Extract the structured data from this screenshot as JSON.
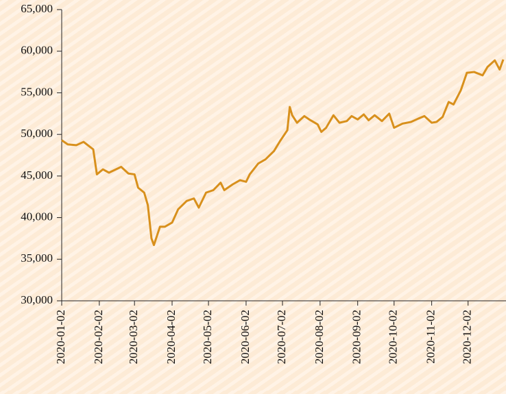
{
  "chart_data": {
    "type": "line",
    "x": [
      "2020-01-02",
      "2020-01-07",
      "2020-01-14",
      "2020-01-20",
      "2020-01-28",
      "2020-01-31",
      "2020-02-05",
      "2020-02-10",
      "2020-02-20",
      "2020-02-26",
      "2020-03-02",
      "2020-03-05",
      "2020-03-10",
      "2020-03-13",
      "2020-03-16",
      "2020-03-18",
      "2020-03-23",
      "2020-03-27",
      "2020-04-02",
      "2020-04-07",
      "2020-04-14",
      "2020-04-20",
      "2020-04-24",
      "2020-04-30",
      "2020-05-06",
      "2020-05-12",
      "2020-05-15",
      "2020-05-22",
      "2020-05-28",
      "2020-06-02",
      "2020-06-05",
      "2020-06-12",
      "2020-06-18",
      "2020-06-25",
      "2020-06-30",
      "2020-07-06",
      "2020-07-08",
      "2020-07-10",
      "2020-07-14",
      "2020-07-20",
      "2020-07-24",
      "2020-07-31",
      "2020-08-03",
      "2020-08-07",
      "2020-08-13",
      "2020-08-18",
      "2020-08-24",
      "2020-08-28",
      "2020-09-02",
      "2020-09-07",
      "2020-09-11",
      "2020-09-16",
      "2020-09-22",
      "2020-09-28",
      "2020-10-02",
      "2020-10-09",
      "2020-10-16",
      "2020-10-22",
      "2020-10-27",
      "2020-11-02",
      "2020-11-06",
      "2020-11-11",
      "2020-11-16",
      "2020-11-20",
      "2020-11-26",
      "2020-12-01",
      "2020-12-07",
      "2020-12-14",
      "2020-12-18",
      "2020-12-24",
      "2020-12-28",
      "2020-12-31"
    ],
    "series": [
      {
        "color": "#d8901c",
        "values": [
          49300,
          48800,
          48700,
          49100,
          48200,
          45200,
          45800,
          45400,
          46100,
          45300,
          45200,
          43600,
          43000,
          41500,
          37500,
          36700,
          38900,
          38900,
          39400,
          41000,
          42000,
          42300,
          41200,
          43000,
          43300,
          44200,
          43300,
          44000,
          44500,
          44300,
          45200,
          46500,
          47000,
          48000,
          49200,
          50500,
          53300,
          52300,
          51400,
          52200,
          51800,
          51200,
          50300,
          50800,
          52300,
          51400,
          51600,
          52200,
          51800,
          52400,
          51700,
          52300,
          51600,
          52500,
          50800,
          51300,
          51500,
          51900,
          52200,
          51400,
          51500,
          52100,
          53900,
          53600,
          55300,
          57400,
          57500,
          57100,
          58100,
          58900,
          57800,
          59000
        ]
      }
    ],
    "xlim": [
      "2020-01-02",
      "2020-12-31"
    ],
    "xticks": [
      "2020-01-02",
      "2020-02-02",
      "2020-03-02",
      "2020-04-02",
      "2020-05-02",
      "2020-06-02",
      "2020-07-02",
      "2020-08-02",
      "2020-09-02",
      "2020-10-02",
      "2020-11-02",
      "2020-12-02"
    ],
    "ylim": [
      30000,
      65000
    ],
    "yticks": [
      {
        "value": 30000,
        "label": "30,000"
      },
      {
        "value": 35000,
        "label": "35,000"
      },
      {
        "value": 40000,
        "label": "40,000"
      },
      {
        "value": 45000,
        "label": "45,000"
      },
      {
        "value": 50000,
        "label": "50,000"
      },
      {
        "value": 55000,
        "label": "55,000"
      },
      {
        "value": 60000,
        "label": "60,000"
      },
      {
        "value": 65000,
        "label": "65,000"
      }
    ]
  }
}
